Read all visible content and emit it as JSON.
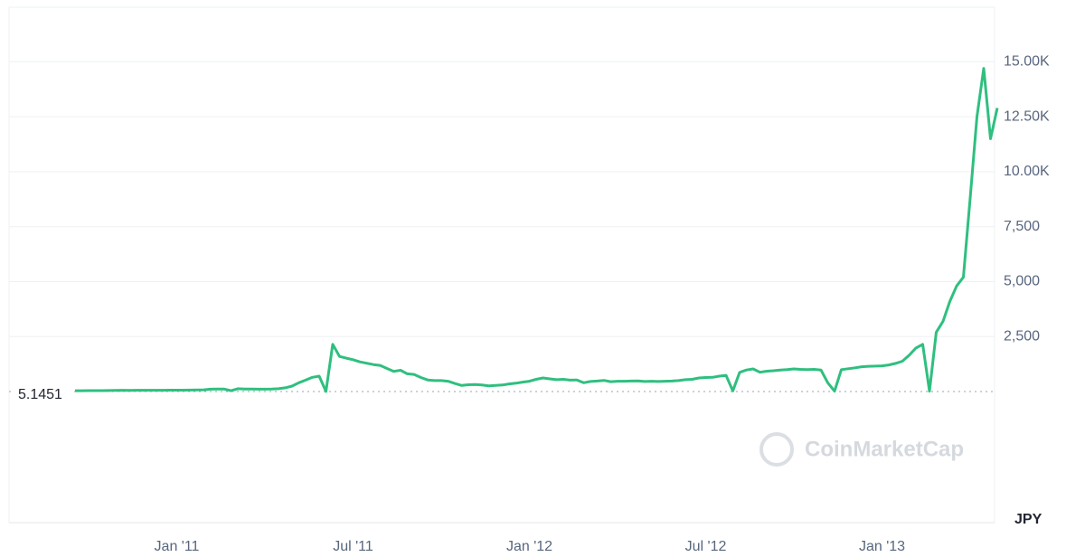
{
  "chart_data": {
    "type": "line",
    "categories": [
      null,
      null,
      null,
      null,
      null,
      null,
      null,
      null,
      null,
      null,
      null,
      null,
      null,
      null,
      null,
      "Jan '11",
      null,
      null,
      null,
      null,
      null,
      null,
      null,
      null,
      null,
      null,
      null,
      null,
      null,
      null,
      null,
      null,
      null,
      null,
      null,
      null,
      null,
      null,
      null,
      null,
      null,
      "Jul '11",
      null,
      null,
      null,
      null,
      null,
      null,
      null,
      null,
      null,
      null,
      null,
      null,
      null,
      null,
      null,
      null,
      null,
      null,
      null,
      null,
      null,
      null,
      null,
      null,
      null,
      "Jan '12",
      null,
      null,
      null,
      null,
      null,
      null,
      null,
      null,
      null,
      null,
      null,
      null,
      null,
      null,
      null,
      null,
      null,
      null,
      null,
      null,
      null,
      null,
      null,
      null,
      null,
      "Jul '12",
      null,
      null,
      null,
      null,
      null,
      null,
      null,
      null,
      null,
      null,
      null,
      null,
      null,
      null,
      null,
      null,
      null,
      null,
      null,
      null,
      null,
      null,
      null,
      null,
      null,
      "Jan '13",
      null,
      null,
      null,
      null,
      null,
      null,
      null,
      null,
      null,
      null,
      null,
      null,
      null,
      null,
      null,
      null,
      null
    ],
    "series": [
      {
        "color": "#2fbf7f",
        "values": [
          40,
          40,
          45,
          45,
          45,
          50,
          55,
          60,
          55,
          60,
          60,
          60,
          60,
          60,
          65,
          65,
          65,
          70,
          75,
          80,
          110,
          120,
          115,
          40,
          130,
          120,
          115,
          110,
          110,
          115,
          130,
          170,
          250,
          400,
          520,
          650,
          700,
          5,
          2150,
          1600,
          1520,
          1450,
          1350,
          1290,
          1230,
          1190,
          1050,
          920,
          970,
          810,
          780,
          640,
          530,
          500,
          500,
          470,
          370,
          280,
          310,
          320,
          300,
          260,
          280,
          300,
          350,
          380,
          430,
          470,
          560,
          620,
          580,
          540,
          560,
          520,
          530,
          400,
          460,
          480,
          510,
          450,
          470,
          470,
          480,
          490,
          460,
          470,
          460,
          470,
          480,
          500,
          540,
          560,
          620,
          640,
          650,
          700,
          740,
          30,
          870,
          980,
          1030,
          880,
          930,
          950,
          980,
          1000,
          1030,
          1010,
          1000,
          1010,
          980,
          400,
          20,
          1000,
          1040,
          1080,
          1130,
          1150,
          1160,
          1170,
          1210,
          1280,
          1380,
          1650,
          1980,
          2150,
          20,
          2700,
          3200,
          4100,
          4800,
          5200,
          8800,
          12500,
          14700,
          11500,
          12900
        ]
      }
    ],
    "ylim": [
      -5960,
      17480
    ],
    "yticks": [
      {
        "value": 2500,
        "label": "2,500"
      },
      {
        "value": 5000,
        "label": "5,000"
      },
      {
        "value": 7500,
        "label": "7,500"
      },
      {
        "value": 10000,
        "label": "10.00K"
      },
      {
        "value": 12500,
        "label": "12.50K"
      },
      {
        "value": 15000,
        "label": "15.00K"
      }
    ],
    "grid": true,
    "baseline": 5.1451,
    "currency": "JPY",
    "watermark": "CoinMarketCap"
  }
}
